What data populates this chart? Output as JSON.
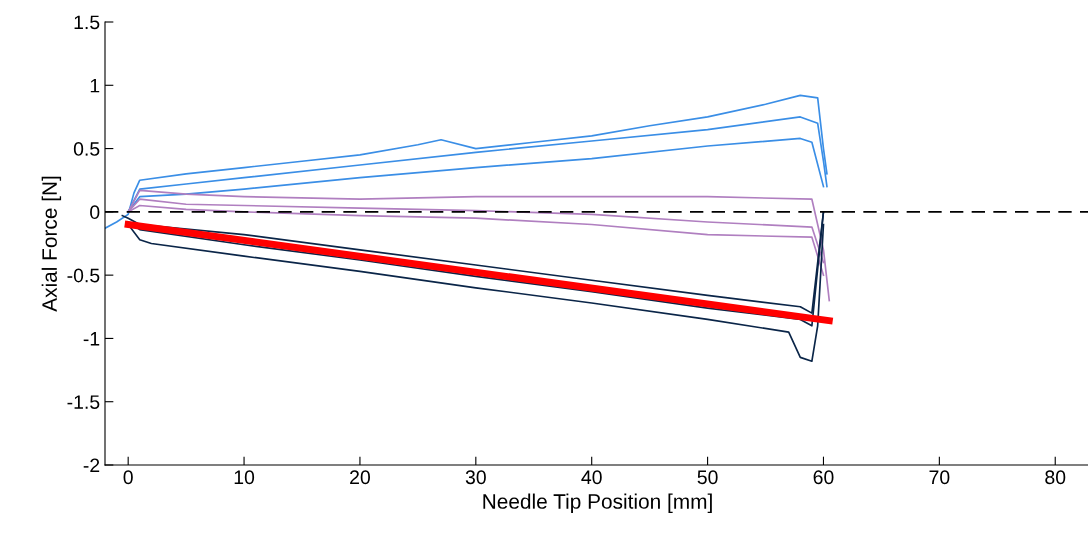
{
  "chart_data": {
    "type": "line",
    "xlabel": "Needle Tip Position [mm]",
    "ylabel": "Axial Force [N]",
    "xlim": [
      -2,
      83
    ],
    "ylim": [
      -2,
      1.5
    ],
    "xticks": [
      0,
      10,
      20,
      30,
      40,
      50,
      60,
      70,
      80
    ],
    "yticks": [
      -2,
      -1.5,
      -1,
      -0.5,
      0,
      0.5,
      1,
      1.5
    ],
    "grid": false,
    "legend": false,
    "marker": "none",
    "line_style": "solid",
    "ref_lines": [
      {
        "axis": "y",
        "value": 0,
        "color": "#000000",
        "line_style": "dashed"
      }
    ],
    "series": [
      {
        "color": "#3a8ee6",
        "x": [
          -2,
          -1,
          0,
          0.5,
          1,
          5,
          10,
          15,
          20,
          25,
          27,
          30,
          35,
          40,
          45,
          50,
          55,
          58,
          59.5,
          60,
          60.3
        ],
        "values": [
          -0.13,
          -0.08,
          -0.02,
          0.15,
          0.25,
          0.3,
          0.35,
          0.4,
          0.45,
          0.53,
          0.57,
          0.5,
          0.55,
          0.6,
          0.68,
          0.75,
          0.85,
          0.92,
          0.9,
          0.5,
          0.3
        ]
      },
      {
        "color": "#3a8ee6",
        "x": [
          0,
          1,
          5,
          10,
          20,
          30,
          40,
          50,
          58,
          59.5,
          60,
          60.3
        ],
        "values": [
          0.0,
          0.18,
          0.22,
          0.27,
          0.37,
          0.47,
          0.56,
          0.65,
          0.75,
          0.7,
          0.4,
          0.2
        ]
      },
      {
        "color": "#3a8ee6",
        "x": [
          0,
          1,
          5,
          10,
          20,
          30,
          40,
          50,
          58,
          59,
          60
        ],
        "values": [
          0.0,
          0.12,
          0.14,
          0.18,
          0.27,
          0.35,
          0.42,
          0.52,
          0.58,
          0.55,
          0.2
        ]
      },
      {
        "color": "#b07fc0",
        "x": [
          0,
          1,
          5,
          10,
          20,
          30,
          40,
          50,
          59,
          60,
          60.5
        ],
        "values": [
          0.0,
          0.17,
          0.14,
          0.12,
          0.1,
          0.12,
          0.12,
          0.12,
          0.1,
          -0.3,
          -0.7
        ]
      },
      {
        "color": "#b07fc0",
        "x": [
          0,
          1,
          5,
          10,
          20,
          30,
          40,
          50,
          59,
          60
        ],
        "values": [
          0.0,
          0.1,
          0.06,
          0.05,
          0.03,
          0.01,
          -0.02,
          -0.08,
          -0.12,
          -0.4
        ]
      },
      {
        "color": "#b07fc0",
        "x": [
          0,
          1,
          5,
          10,
          20,
          30,
          40,
          50,
          59,
          60
        ],
        "values": [
          0.0,
          0.05,
          0.02,
          0.0,
          -0.03,
          -0.05,
          -0.1,
          -0.18,
          -0.2,
          -0.5
        ]
      },
      {
        "color": "#0a2548",
        "x": [
          -0.5,
          0,
          1,
          10,
          20,
          30,
          40,
          50,
          58,
          59,
          60
        ],
        "values": [
          -0.03,
          -0.05,
          -0.1,
          -0.18,
          -0.3,
          -0.42,
          -0.54,
          -0.66,
          -0.75,
          -0.8,
          0.0
        ]
      },
      {
        "color": "#0a2548",
        "x": [
          0,
          1,
          10,
          20,
          30,
          40,
          50,
          58,
          59,
          60
        ],
        "values": [
          -0.08,
          -0.14,
          -0.26,
          -0.38,
          -0.51,
          -0.63,
          -0.76,
          -0.85,
          -0.9,
          0.0
        ]
      },
      {
        "color": "#0a2548",
        "x": [
          0,
          1,
          2,
          10,
          20,
          30,
          40,
          50,
          57,
          58,
          59,
          59.5,
          60
        ],
        "values": [
          -0.1,
          -0.22,
          -0.25,
          -0.35,
          -0.47,
          -0.6,
          -0.72,
          -0.85,
          -0.95,
          -1.15,
          -1.18,
          -0.9,
          -0.1
        ]
      },
      {
        "color": "#ff0000",
        "x": [
          0,
          60.5
        ],
        "values": [
          -0.1,
          -0.86
        ]
      }
    ]
  }
}
